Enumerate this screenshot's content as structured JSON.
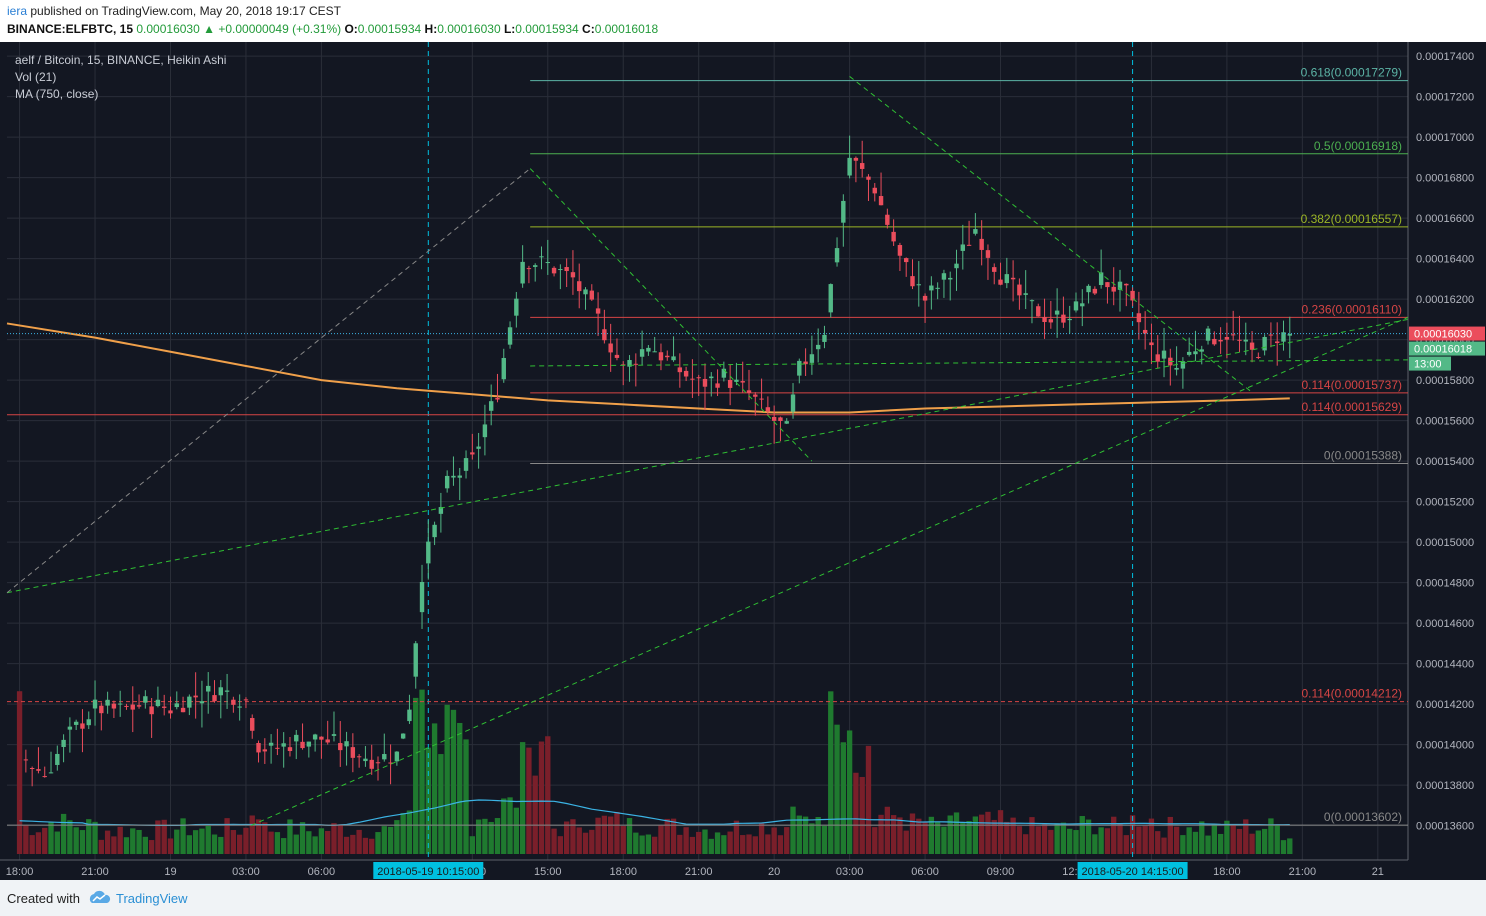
{
  "header": {
    "user": "iera",
    "published_text": "published on TradingView.com, May 20, 2018 19:17 CEST",
    "symbol": "BINANCE:ELFBTC, 15",
    "last": "0.00016030",
    "change_arrow": "▲",
    "change": "+0.00000049 (+0.31%)",
    "o_label": "O:",
    "o": "0.00015934",
    "h_label": "H:",
    "h": "0.00016030",
    "l_label": "L:",
    "l": "0.00015934",
    "c_label": "C:",
    "c": "0.00016018"
  },
  "legend": {
    "title": "aelf / Bitcoin, 15, BINANCE, Heikin Ashi",
    "vol": "Vol (21)",
    "ma": "MA (750, close)"
  },
  "footer": {
    "created_with": "Created with",
    "brand": "TradingView",
    "logo_icon": "tradingview-cloud-icon"
  },
  "colors": {
    "background": "#131722",
    "grid": "#2a2e39",
    "up": "#26a69a",
    "up_candle": "#53b987",
    "down": "#eb4d5c",
    "ma": "#f0a04a",
    "vol_ma": "#3bb3e4",
    "fib_618": "#5cb4a6",
    "fib_05": "#4caf50",
    "fib_382": "#9bb526",
    "fib_236": "#d64545",
    "fib_0": "#888888",
    "trend": "#2fbf33",
    "axis_text": "#b2b5be",
    "highlight_label": "#00c0e0"
  },
  "chart_data": {
    "type": "candlestick",
    "subtype": "Heikin Ashi",
    "symbol": "aelf / Bitcoin",
    "exchange": "BINANCE",
    "timeframe": "15",
    "ylim": [
      0.0001343,
      0.0001747
    ],
    "y_ticks": [
      "0.00017400",
      "0.00017200",
      "0.00017000",
      "0.00016800",
      "0.00016600",
      "0.00016400",
      "0.00016200",
      "0.00016000",
      "0.00015800",
      "0.00015600",
      "0.00015400",
      "0.00015200",
      "0.00015000",
      "0.00014800",
      "0.00014600",
      "0.00014400",
      "0.00014200",
      "0.00014000",
      "0.00013800",
      "0.00013600"
    ],
    "x_ticks": [
      "18:00",
      "21:00",
      "19",
      "03:00",
      "06:00",
      "12:00",
      "15:00",
      "18:00",
      "21:00",
      "20",
      "03:00",
      "06:00",
      "09:00",
      "12:00",
      "15:00",
      "18:00",
      "21:00",
      "21"
    ],
    "x_tick_hours": [
      0,
      3,
      6,
      9,
      12,
      18,
      21,
      24,
      27,
      30,
      33,
      36,
      39,
      42,
      45,
      48,
      51,
      54
    ],
    "x_range_hours": [
      -0.5,
      55.2
    ],
    "time_markers": [
      {
        "label": "2018-05-19 10:15:00",
        "hour": 16.25
      },
      {
        "label": "2018-05-20 14:15:00",
        "hour": 44.25
      }
    ],
    "price_labels": [
      {
        "text": "0.00016030",
        "value": 0.0001603,
        "color": "#eb4d5c"
      },
      {
        "text": "0.00016018",
        "value": 0.00016018,
        "color": "#53b987"
      },
      {
        "text": "13:00",
        "value": 0.0001588,
        "color": "#53b987"
      }
    ],
    "fib_levels": [
      {
        "label": "0.618(0.00017279)",
        "value": 0.00017279,
        "x_start_hour": 20.3,
        "color": "#5cb4a6"
      },
      {
        "label": "0.5(0.00016918)",
        "value": 0.00016918,
        "x_start_hour": 20.3,
        "color": "#4caf50"
      },
      {
        "label": "0.382(0.00016557)",
        "value": 0.00016557,
        "x_start_hour": 20.3,
        "color": "#9bb526"
      },
      {
        "label": "0.236(0.00016110)",
        "value": 0.0001611,
        "x_start_hour": 20.3,
        "color": "#d64545"
      },
      {
        "label": "0.114(0.00015737)",
        "value": 0.00015737,
        "x_start_hour": 20.3,
        "color": "#d64545"
      },
      {
        "label": "0.114(0.00015629)",
        "value": 0.00015629,
        "x_start_hour": -0.5,
        "color": "#d64545"
      },
      {
        "label": "0(0.00015388)",
        "value": 0.00015388,
        "x_start_hour": 20.3,
        "color": "#888888"
      },
      {
        "label": "0.114(0.00014212)",
        "value": 0.00014212,
        "x_start_hour": -0.5,
        "color": "#d64545",
        "dashed": true
      },
      {
        "label": "0(0.00013602)",
        "value": 0.00013602,
        "x_start_hour": -0.5,
        "color": "#888888"
      }
    ],
    "trend_lines": [
      {
        "from": [
          -0.5,
          0.0001475
        ],
        "to": [
          55.2,
          0.000161
        ],
        "color": "#2fbf33",
        "dashed": true
      },
      {
        "from": [
          9.2,
          0.000136
        ],
        "to": [
          55.2,
          0.0001611
        ],
        "color": "#2fbf33",
        "dashed": true
      },
      {
        "from": [
          20.3,
          0.0001587
        ],
        "to": [
          55.2,
          0.000159
        ],
        "color": "#2fbf33",
        "dashed": true
      },
      {
        "from": [
          20.3,
          0.00016845
        ],
        "to": [
          31.5,
          0.000154
        ],
        "color": "#2fbf33",
        "dashed": true
      },
      {
        "from": [
          33.0,
          0.000173
        ],
        "to": [
          49.0,
          0.0001574
        ],
        "color": "#2fbf33",
        "dashed": true
      },
      {
        "from": [
          -0.5,
          0.0001475
        ],
        "to": [
          20.3,
          0.00016845
        ],
        "color": "#888888",
        "dashed": true
      }
    ],
    "candles_hourly_close": [
      [
        0,
        0.0001395
      ],
      [
        1,
        0.0001385
      ],
      [
        2,
        0.0001405
      ],
      [
        3,
        0.0001418
      ],
      [
        4,
        0.0001417
      ],
      [
        5,
        0.000142
      ],
      [
        6,
        0.0001418
      ],
      [
        7,
        0.0001424
      ],
      [
        8,
        0.0001427
      ],
      [
        9,
        0.0001422
      ],
      [
        9.5,
        0.00014
      ],
      [
        10,
        0.0001397
      ],
      [
        11,
        0.0001402
      ],
      [
        12,
        0.0001403
      ],
      [
        13,
        0.0001398
      ],
      [
        14,
        0.0001393
      ],
      [
        15,
        0.0001395
      ],
      [
        15.5,
        0.000142
      ],
      [
        16,
        0.0001485
      ],
      [
        17,
        0.0001528
      ],
      [
        18,
        0.000154
      ],
      [
        19,
        0.0001575
      ],
      [
        20,
        0.000164
      ],
      [
        21,
        0.0001637
      ],
      [
        22,
        0.000163
      ],
      [
        23,
        0.000161
      ],
      [
        24,
        0.0001585
      ],
      [
        25,
        0.0001598
      ],
      [
        26,
        0.0001587
      ],
      [
        27,
        0.0001578
      ],
      [
        28,
        0.0001582
      ],
      [
        29,
        0.0001573
      ],
      [
        30,
        0.000156
      ],
      [
        30.5,
        0.0001555
      ],
      [
        31,
        0.0001585
      ],
      [
        32,
        0.0001605
      ],
      [
        33,
        0.000169
      ],
      [
        34,
        0.0001675
      ],
      [
        35,
        0.000164
      ],
      [
        36,
        0.000162
      ],
      [
        37,
        0.0001632
      ],
      [
        38,
        0.0001655
      ],
      [
        39,
        0.0001632
      ],
      [
        40,
        0.0001618
      ],
      [
        41,
        0.000161
      ],
      [
        42,
        0.0001615
      ],
      [
        43,
        0.000163
      ],
      [
        44,
        0.0001622
      ],
      [
        45,
        0.0001595
      ],
      [
        46,
        0.0001586
      ],
      [
        47,
        0.00016
      ],
      [
        48,
        0.0001603
      ],
      [
        49,
        0.0001593
      ],
      [
        50,
        0.0001602
      ]
    ],
    "ma_750": [
      [
        -0.5,
        0.0001608
      ],
      [
        3,
        0.0001601
      ],
      [
        6,
        0.0001594
      ],
      [
        9,
        0.0001587
      ],
      [
        12,
        0.000158
      ],
      [
        15,
        0.0001576
      ],
      [
        18,
        0.0001573
      ],
      [
        21,
        0.000157
      ],
      [
        24,
        0.0001568
      ],
      [
        27,
        0.0001566
      ],
      [
        30,
        0.0001564
      ],
      [
        33,
        0.0001564
      ],
      [
        36,
        0.0001566
      ],
      [
        39,
        0.0001567
      ],
      [
        42,
        0.0001568
      ],
      [
        45,
        0.0001569
      ],
      [
        48,
        0.000157
      ],
      [
        50.5,
        0.0001571
      ]
    ],
    "volume_panel_note": "Vol (21) histogram with MA overlay, drawn at the bottom of the chart pane"
  }
}
